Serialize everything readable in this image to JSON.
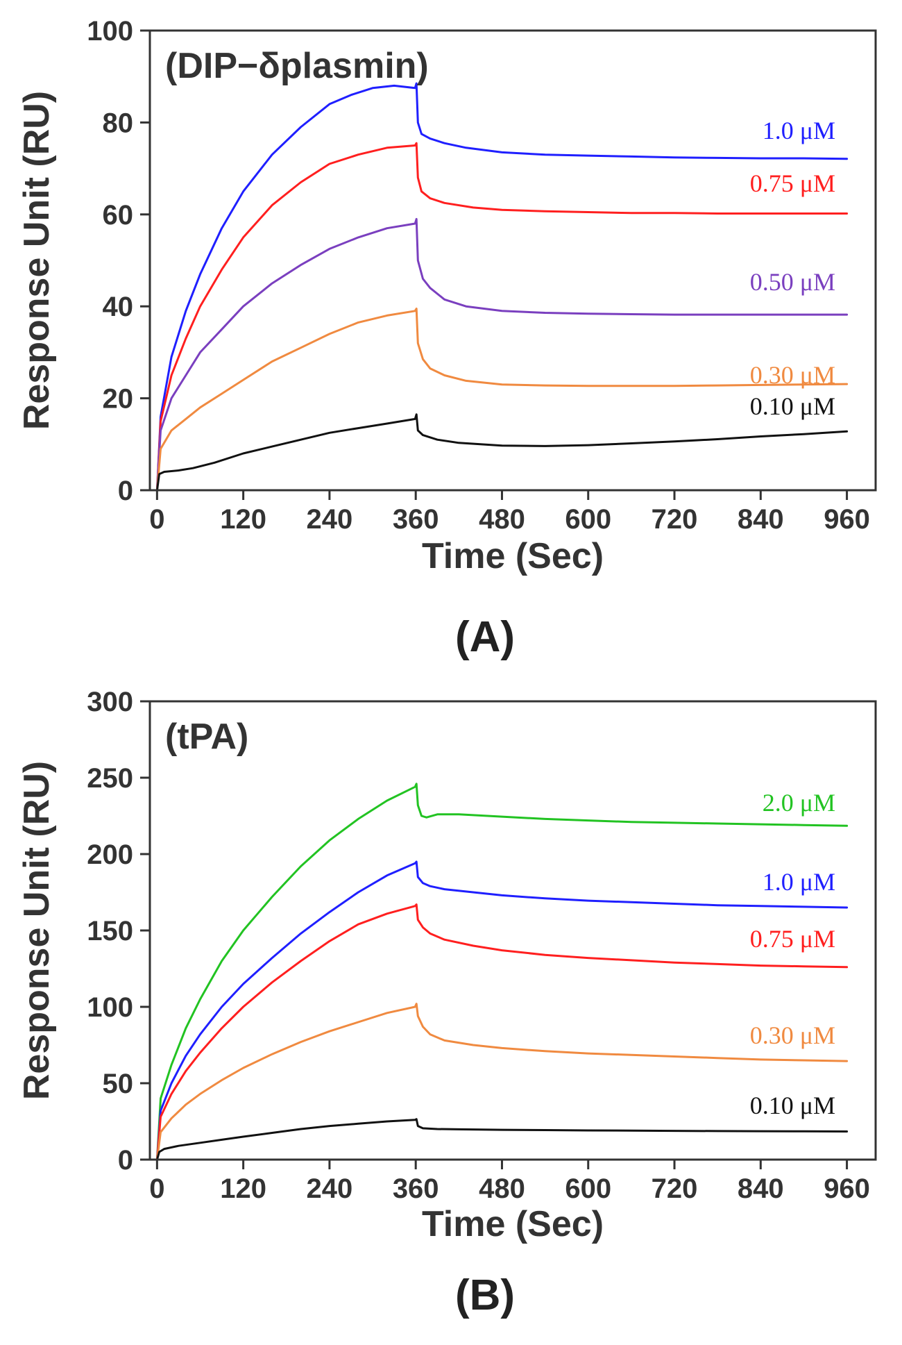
{
  "chart_data": [
    {
      "type": "line",
      "panel_label": "(A)",
      "title": "(DIP−δplasmin)",
      "xlabel": "Time (Sec)",
      "ylabel": "Response Unit (RU)",
      "xlim": [
        -10,
        1000
      ],
      "ylim": [
        0,
        100
      ],
      "xticks": [
        0,
        120,
        240,
        360,
        480,
        600,
        720,
        840,
        960
      ],
      "yticks": [
        0,
        20,
        40,
        60,
        80,
        100
      ],
      "grid": false,
      "legend": "inline-right",
      "series": [
        {
          "name": "1.0 μM",
          "color": "#1f1fff",
          "x": [
            0,
            5,
            20,
            40,
            60,
            90,
            120,
            160,
            200,
            240,
            270,
            300,
            330,
            359,
            361,
            363,
            368,
            380,
            400,
            430,
            480,
            540,
            600,
            660,
            720,
            780,
            840,
            900,
            960
          ],
          "y": [
            0,
            16,
            29,
            39,
            47,
            57,
            65,
            73,
            79,
            84,
            86,
            87.5,
            88,
            87.5,
            88.5,
            80,
            77.5,
            76.5,
            75.5,
            74.5,
            73.5,
            73,
            72.8,
            72.6,
            72.4,
            72.3,
            72.2,
            72.2,
            72.1
          ]
        },
        {
          "name": "0.75 μM",
          "color": "#ff1f1f",
          "x": [
            0,
            5,
            20,
            40,
            60,
            90,
            120,
            160,
            200,
            240,
            280,
            320,
            359,
            361,
            363,
            368,
            380,
            400,
            440,
            480,
            540,
            600,
            660,
            720,
            780,
            840,
            900,
            960
          ],
          "y": [
            0,
            15,
            25,
            33,
            40,
            48,
            55,
            62,
            67,
            71,
            73,
            74.5,
            75,
            75.5,
            68,
            65,
            63.5,
            62.5,
            61.5,
            61,
            60.7,
            60.5,
            60.3,
            60.3,
            60.2,
            60.2,
            60.2,
            60.2
          ]
        },
        {
          "name": "0.50 μM",
          "color": "#7a3fbf",
          "x": [
            0,
            5,
            20,
            40,
            60,
            90,
            120,
            160,
            200,
            240,
            280,
            320,
            359,
            361,
            363,
            370,
            380,
            400,
            430,
            480,
            540,
            600,
            660,
            720,
            780,
            840,
            900,
            960
          ],
          "y": [
            0,
            13,
            20,
            25,
            30,
            35,
            40,
            45,
            49,
            52.5,
            55,
            57,
            58,
            59,
            50,
            46,
            44,
            41.5,
            40,
            39,
            38.6,
            38.4,
            38.3,
            38.2,
            38.2,
            38.2,
            38.2,
            38.2
          ]
        },
        {
          "name": "0.30 μM",
          "color": "#f08a40",
          "x": [
            0,
            5,
            20,
            40,
            60,
            90,
            120,
            160,
            200,
            240,
            280,
            320,
            359,
            361,
            363,
            370,
            380,
            400,
            430,
            480,
            540,
            600,
            660,
            720,
            780,
            840,
            900,
            960
          ],
          "y": [
            0,
            9,
            13,
            15.5,
            18,
            21,
            24,
            28,
            31,
            34,
            36.5,
            38,
            39,
            39.5,
            32,
            28.5,
            26.5,
            25,
            23.8,
            23,
            22.8,
            22.7,
            22.7,
            22.7,
            22.8,
            22.9,
            23,
            23.1
          ]
        },
        {
          "name": "0.10 μM",
          "color": "#111111",
          "x": [
            0,
            3,
            10,
            30,
            50,
            80,
            120,
            160,
            200,
            240,
            280,
            320,
            359,
            361,
            363,
            370,
            390,
            420,
            480,
            540,
            600,
            660,
            720,
            780,
            840,
            900,
            960
          ],
          "y": [
            0,
            3.5,
            4,
            4.3,
            4.8,
            6,
            8,
            9.5,
            11,
            12.5,
            13.5,
            14.5,
            15.5,
            16.5,
            13,
            12,
            11,
            10.3,
            9.7,
            9.6,
            9.8,
            10.2,
            10.6,
            11.1,
            11.7,
            12.2,
            12.8
          ]
        }
      ]
    },
    {
      "type": "line",
      "panel_label": "(B)",
      "title": "(tPA)",
      "xlabel": "Time (Sec)",
      "ylabel": "Response Unit (RU)",
      "xlim": [
        -10,
        1000
      ],
      "ylim": [
        0,
        300
      ],
      "xticks": [
        0,
        120,
        240,
        360,
        480,
        600,
        720,
        840,
        960
      ],
      "yticks": [
        0,
        50,
        100,
        150,
        200,
        250,
        300
      ],
      "grid": false,
      "legend": "inline-right",
      "series": [
        {
          "name": "2.0 μM",
          "color": "#22c322",
          "x": [
            0,
            5,
            20,
            40,
            60,
            90,
            120,
            160,
            200,
            240,
            280,
            320,
            359,
            361,
            363,
            368,
            375,
            390,
            420,
            480,
            540,
            600,
            660,
            720,
            780,
            840,
            900,
            960
          ],
          "y": [
            0,
            40,
            62,
            86,
            105,
            130,
            150,
            172,
            192,
            209,
            223,
            235,
            244,
            246,
            232,
            225,
            224,
            226,
            226,
            224.5,
            223,
            222,
            221,
            220.5,
            220,
            219.5,
            219,
            218.5
          ]
        },
        {
          "name": "1.0 μM",
          "color": "#1f1fff",
          "x": [
            0,
            5,
            20,
            40,
            60,
            90,
            120,
            160,
            200,
            240,
            280,
            320,
            359,
            361,
            363,
            370,
            380,
            400,
            440,
            480,
            540,
            600,
            660,
            720,
            780,
            840,
            900,
            960
          ],
          "y": [
            0,
            32,
            50,
            68,
            82,
            100,
            115,
            132,
            148,
            162,
            175,
            186,
            194,
            195,
            185,
            181,
            179,
            177,
            175,
            173,
            171,
            169.5,
            168.5,
            167.5,
            166.5,
            166,
            165.5,
            165
          ]
        },
        {
          "name": "0.75 μM",
          "color": "#ff1f1f",
          "x": [
            0,
            5,
            20,
            40,
            60,
            90,
            120,
            160,
            200,
            240,
            280,
            320,
            359,
            361,
            363,
            370,
            380,
            400,
            440,
            480,
            540,
            600,
            660,
            720,
            780,
            840,
            900,
            960
          ],
          "y": [
            0,
            28,
            43,
            58,
            70,
            86,
            100,
            116,
            130,
            143,
            154,
            161,
            166,
            167,
            157,
            152,
            148,
            144,
            140,
            137,
            134,
            132,
            130.5,
            129,
            128,
            127,
            126.5,
            126
          ]
        },
        {
          "name": "0.30 μM",
          "color": "#f08a40",
          "x": [
            0,
            5,
            20,
            40,
            60,
            90,
            120,
            160,
            200,
            240,
            280,
            320,
            359,
            361,
            363,
            370,
            380,
            400,
            440,
            480,
            540,
            600,
            660,
            720,
            780,
            840,
            900,
            960
          ],
          "y": [
            0,
            18,
            27,
            36,
            43,
            52,
            60,
            69,
            77,
            84,
            90,
            96,
            100,
            102,
            94,
            87,
            82,
            78,
            75,
            73,
            71,
            69.5,
            68.5,
            67.5,
            66.5,
            65.5,
            65,
            64.5
          ]
        },
        {
          "name": "0.10 μM",
          "color": "#111111",
          "x": [
            0,
            3,
            10,
            30,
            60,
            90,
            120,
            160,
            200,
            240,
            280,
            320,
            359,
            361,
            363,
            370,
            390,
            420,
            480,
            540,
            600,
            660,
            720,
            780,
            840,
            900,
            960
          ],
          "y": [
            0,
            5,
            7,
            9,
            11,
            13,
            15,
            17.5,
            20,
            22,
            23.5,
            25,
            26,
            26.5,
            22,
            20.5,
            20,
            19.8,
            19.5,
            19.3,
            19.1,
            19,
            18.8,
            18.7,
            18.6,
            18.5,
            18.4
          ]
        }
      ]
    }
  ]
}
